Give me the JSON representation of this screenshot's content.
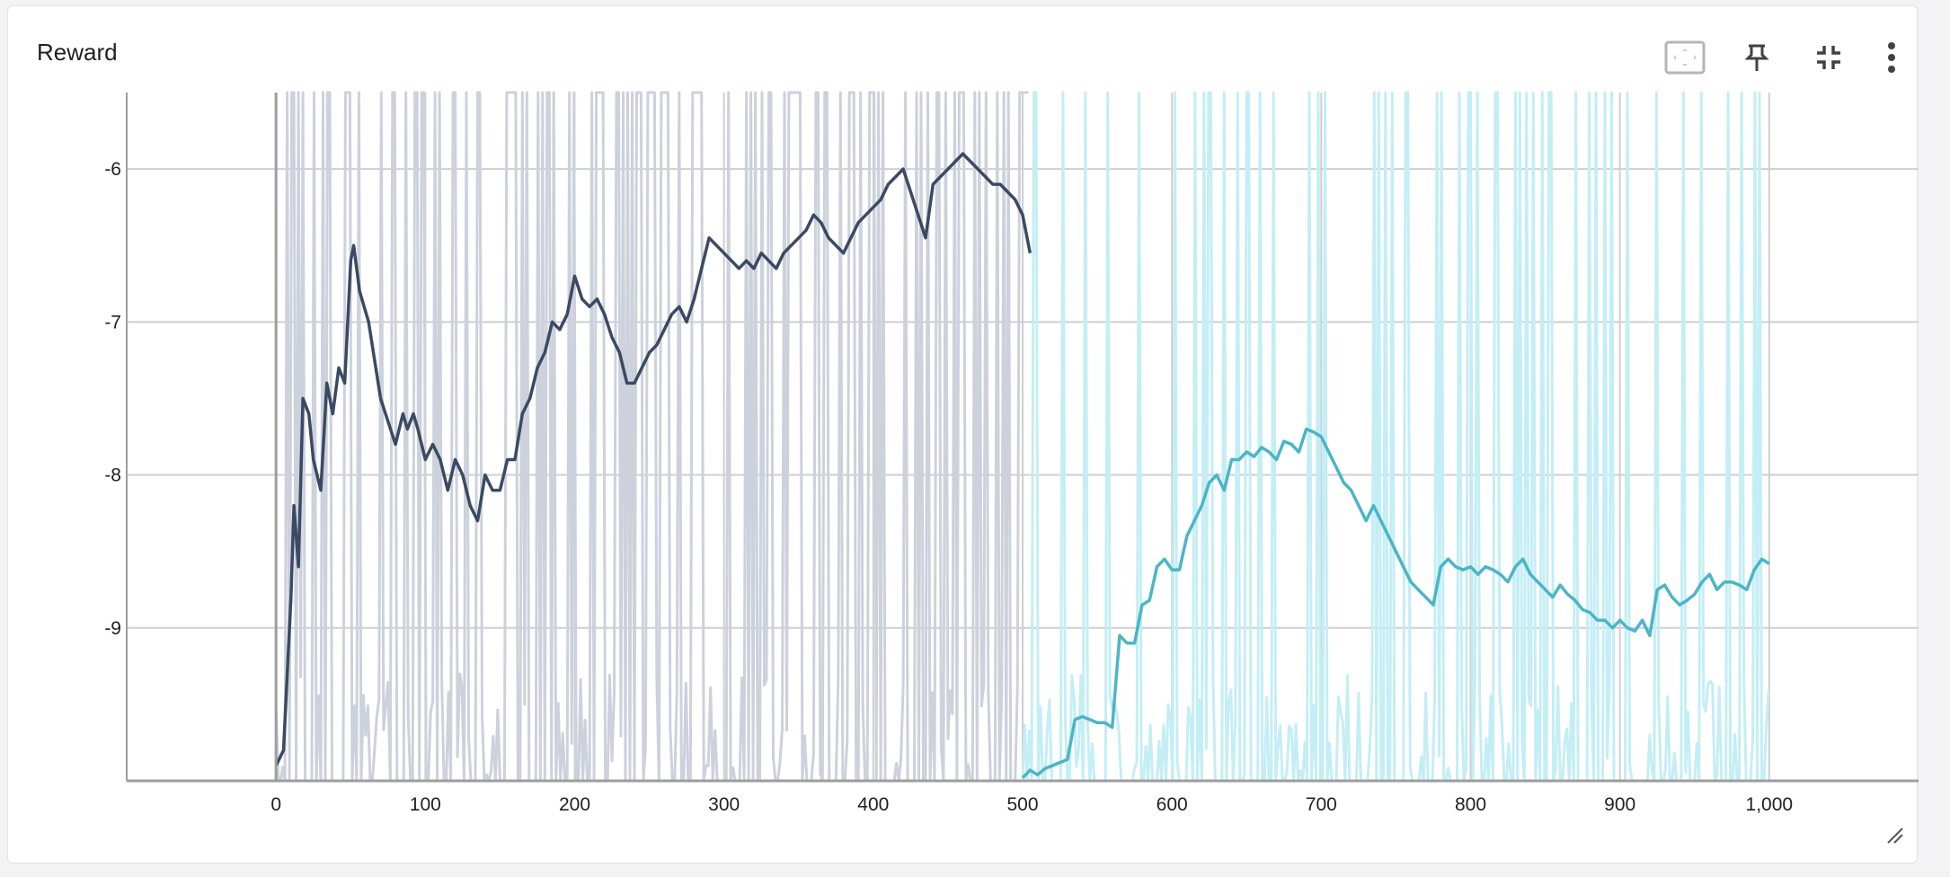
{
  "card": {
    "title": "Reward",
    "icons": [
      "fit-domain-icon",
      "pin-icon",
      "collapse-icon",
      "more-vert-icon"
    ]
  },
  "colors": {
    "series_dark": "#3b4a63",
    "series_dark_raw": "#ccd1dc",
    "series_cyan": "#4bb5c8",
    "series_cyan_raw": "#c4eef5",
    "grid": "#cfcfcf",
    "axis": "#9e9e9e"
  },
  "chart_data": {
    "type": "line",
    "title": "",
    "xlabel": "",
    "ylabel": "",
    "xlim": [
      -100,
      1100
    ],
    "ylim": [
      -10,
      -5.5
    ],
    "xticks": [
      0,
      100,
      200,
      300,
      400,
      500,
      600,
      700,
      800,
      900,
      1000
    ],
    "xtick_labels": [
      "0",
      "100",
      "200",
      "300",
      "400",
      "500",
      "600",
      "700",
      "800",
      "900",
      "1,000"
    ],
    "yticks": [
      -6,
      -7,
      -8,
      -9
    ],
    "ytick_labels": [
      "-6",
      "-7",
      "-8",
      "-9"
    ],
    "grid": true,
    "series": [
      {
        "style": "smoothed",
        "color": "#3b4a63",
        "x": [
          0,
          5,
          10,
          12,
          15,
          18,
          22,
          25,
          30,
          34,
          38,
          42,
          46,
          50,
          52,
          56,
          62,
          70,
          80,
          85,
          88,
          92,
          95,
          100,
          105,
          110,
          115,
          120,
          125,
          130,
          135,
          140,
          145,
          150,
          155,
          160,
          165,
          170,
          175,
          180,
          185,
          190,
          195,
          200,
          205,
          210,
          215,
          220,
          225,
          230,
          235,
          240,
          245,
          250,
          255,
          260,
          265,
          270,
          275,
          280,
          285,
          290,
          295,
          300,
          305,
          310,
          315,
          320,
          325,
          330,
          335,
          340,
          345,
          350,
          355,
          360,
          365,
          370,
          375,
          380,
          385,
          390,
          395,
          400,
          405,
          410,
          415,
          420,
          425,
          430,
          435,
          440,
          445,
          450,
          455,
          460,
          465,
          470,
          475,
          480,
          485,
          490,
          495,
          500,
          505
        ],
        "y": [
          -9.9,
          -9.8,
          -8.8,
          -8.2,
          -8.6,
          -7.5,
          -7.6,
          -7.9,
          -8.1,
          -7.4,
          -7.6,
          -7.3,
          -7.4,
          -6.6,
          -6.5,
          -6.8,
          -7.0,
          -7.5,
          -7.8,
          -7.6,
          -7.7,
          -7.6,
          -7.7,
          -7.9,
          -7.8,
          -7.9,
          -8.1,
          -7.9,
          -8.0,
          -8.2,
          -8.3,
          -8.0,
          -8.1,
          -8.1,
          -7.9,
          -7.9,
          -7.6,
          -7.5,
          -7.3,
          -7.2,
          -7.0,
          -7.05,
          -6.95,
          -6.7,
          -6.85,
          -6.9,
          -6.85,
          -6.95,
          -7.1,
          -7.2,
          -7.4,
          -7.4,
          -7.3,
          -7.2,
          -7.15,
          -7.05,
          -6.95,
          -6.9,
          -7.0,
          -6.85,
          -6.65,
          -6.45,
          -6.5,
          -6.55,
          -6.6,
          -6.65,
          -6.6,
          -6.65,
          -6.55,
          -6.6,
          -6.65,
          -6.55,
          -6.5,
          -6.45,
          -6.4,
          -6.3,
          -6.35,
          -6.45,
          -6.5,
          -6.55,
          -6.45,
          -6.35,
          -6.3,
          -6.25,
          -6.2,
          -6.1,
          -6.05,
          -6.0,
          -6.15,
          -6.3,
          -6.45,
          -6.1,
          -6.05,
          -6.0,
          -5.95,
          -5.9,
          -5.95,
          -6.0,
          -6.05,
          -6.1,
          -6.1,
          -6.15,
          -6.2,
          -6.3,
          -6.55
        ],
        "raw": {
          "color": "#ccd1dc",
          "x_range": [
            0,
            505
          ],
          "seed": 7,
          "high_fraction": 0.35
        }
      },
      {
        "style": "smoothed",
        "color": "#4bb5c8",
        "x": [
          500,
          505,
          510,
          515,
          520,
          525,
          530,
          535,
          540,
          545,
          550,
          555,
          560,
          565,
          570,
          575,
          580,
          585,
          590,
          595,
          600,
          605,
          610,
          615,
          620,
          625,
          630,
          635,
          640,
          645,
          650,
          655,
          660,
          665,
          670,
          675,
          680,
          685,
          690,
          695,
          700,
          705,
          710,
          715,
          720,
          725,
          730,
          735,
          740,
          745,
          750,
          755,
          760,
          765,
          770,
          775,
          780,
          785,
          790,
          795,
          800,
          805,
          810,
          815,
          820,
          825,
          830,
          835,
          840,
          845,
          850,
          855,
          860,
          865,
          870,
          875,
          880,
          885,
          890,
          895,
          900,
          905,
          910,
          915,
          920,
          925,
          930,
          935,
          940,
          945,
          950,
          955,
          960,
          965,
          970,
          975,
          980,
          985,
          990,
          995,
          1000
        ],
        "y": [
          -9.98,
          -9.93,
          -9.96,
          -9.92,
          -9.9,
          -9.88,
          -9.86,
          -9.6,
          -9.58,
          -9.6,
          -9.62,
          -9.62,
          -9.65,
          -9.05,
          -9.1,
          -9.1,
          -8.85,
          -8.82,
          -8.6,
          -8.55,
          -8.62,
          -8.62,
          -8.4,
          -8.3,
          -8.2,
          -8.05,
          -8.0,
          -8.1,
          -7.9,
          -7.9,
          -7.85,
          -7.88,
          -7.82,
          -7.85,
          -7.9,
          -7.78,
          -7.8,
          -7.85,
          -7.7,
          -7.72,
          -7.75,
          -7.85,
          -7.95,
          -8.05,
          -8.1,
          -8.2,
          -8.3,
          -8.2,
          -8.3,
          -8.4,
          -8.5,
          -8.6,
          -8.7,
          -8.75,
          -8.8,
          -8.85,
          -8.6,
          -8.55,
          -8.6,
          -8.62,
          -8.6,
          -8.65,
          -8.6,
          -8.62,
          -8.65,
          -8.7,
          -8.6,
          -8.55,
          -8.65,
          -8.7,
          -8.75,
          -8.8,
          -8.72,
          -8.78,
          -8.82,
          -8.88,
          -8.9,
          -8.95,
          -8.95,
          -9.0,
          -8.95,
          -9.0,
          -9.02,
          -8.95,
          -9.05,
          -8.75,
          -8.72,
          -8.8,
          -8.85,
          -8.82,
          -8.78,
          -8.7,
          -8.65,
          -8.75,
          -8.7,
          -8.7,
          -8.72,
          -8.75,
          -8.62,
          -8.55,
          -8.58
        ],
        "raw": {
          "color": "#c4eef5",
          "x_range": [
            500,
            1000
          ],
          "seed": 13,
          "high_fraction": 0.18
        }
      }
    ]
  }
}
